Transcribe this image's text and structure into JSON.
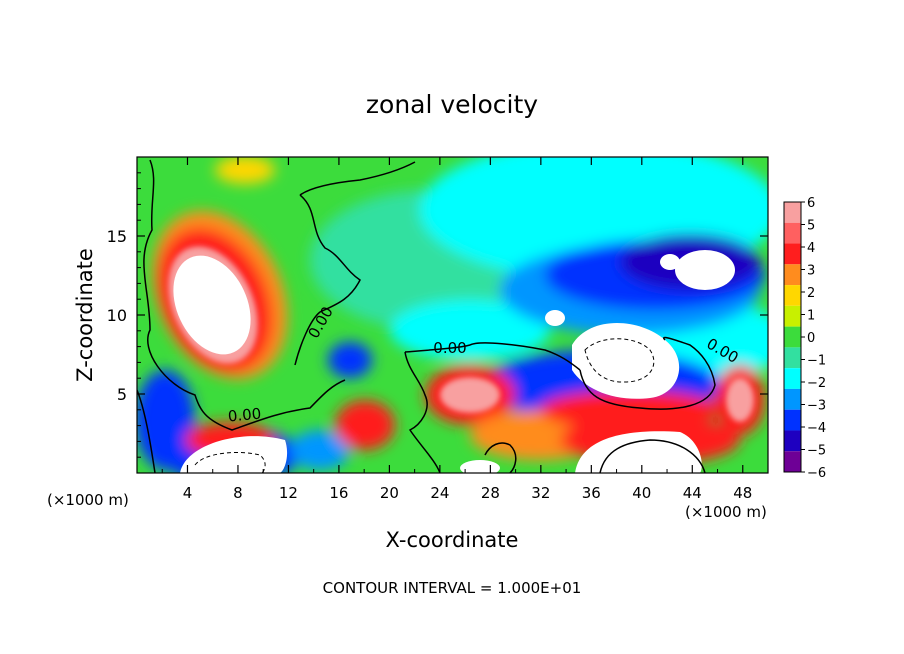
{
  "chart_data": {
    "type": "heatmap",
    "title": "zonal velocity",
    "xlabel": "X-coordinate",
    "ylabel": "Z-coordinate",
    "x_unit": "(×1000 m)",
    "x_unit_right": "(×1000 m)",
    "footer": "CONTOUR INTERVAL = 1.000E+01",
    "xlim": [
      0,
      50
    ],
    "ylim": [
      0,
      20
    ],
    "x_ticks": [
      4,
      8,
      12,
      16,
      20,
      24,
      28,
      32,
      36,
      40,
      44,
      48
    ],
    "y_ticks": [
      5,
      10,
      15
    ],
    "colorbar": {
      "levels": [
        6,
        5,
        4,
        3,
        2,
        1,
        0,
        -1,
        -2,
        -3,
        -4,
        -5,
        -6
      ],
      "colors": [
        "#f8a0a0",
        "#ff6060",
        "#ff1e1e",
        "#ff8c1e",
        "#ffd700",
        "#c8f000",
        "#3cdc3c",
        "#32e0a0",
        "#00ffff",
        "#0096ff",
        "#0032ff",
        "#1e00c0",
        "#6e0096"
      ]
    },
    "contour_labels": [
      "0.00",
      "0.00",
      "0.00",
      "0.00"
    ],
    "grid": false
  }
}
